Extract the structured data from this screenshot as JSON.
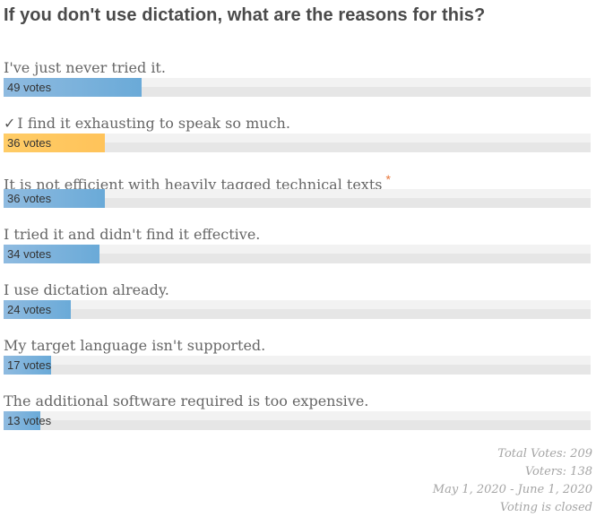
{
  "poll": {
    "question": "If you don't use dictation, what are the reasons for this?",
    "max_votes": 209,
    "answers": [
      {
        "label": "I've just never tried it.",
        "votes_text": "49 votes",
        "votes": 49,
        "voted": false,
        "starred": false
      },
      {
        "label": "I find it exhausting to speak so much.",
        "votes_text": "36 votes",
        "votes": 36,
        "voted": true,
        "starred": false
      },
      {
        "label": "It is not efficient with heavily tagged technical texts",
        "votes_text": "36 votes",
        "votes": 36,
        "voted": false,
        "starred": true
      },
      {
        "label": "I tried it and didn't find it effective.",
        "votes_text": "34 votes",
        "votes": 34,
        "voted": false,
        "starred": false
      },
      {
        "label": "I use dictation already.",
        "votes_text": "24 votes",
        "votes": 24,
        "voted": false,
        "starred": false
      },
      {
        "label": "My target language isn't supported.",
        "votes_text": "17 votes",
        "votes": 17,
        "voted": false,
        "starred": false
      },
      {
        "label": "The additional software required is too expensive.",
        "votes_text": "13 votes",
        "votes": 13,
        "voted": false,
        "starred": false
      }
    ],
    "check_mark": "✓",
    "star_mark": "*",
    "colors": {
      "bar": "#7fb3dc",
      "voted_bar": "#ffc862",
      "star": "#e8763a"
    }
  },
  "footer": {
    "total_votes": "Total Votes: 209",
    "voters": "Voters: 138",
    "date_range": "May 1, 2020 - June 1, 2020",
    "status": "Voting is closed"
  }
}
